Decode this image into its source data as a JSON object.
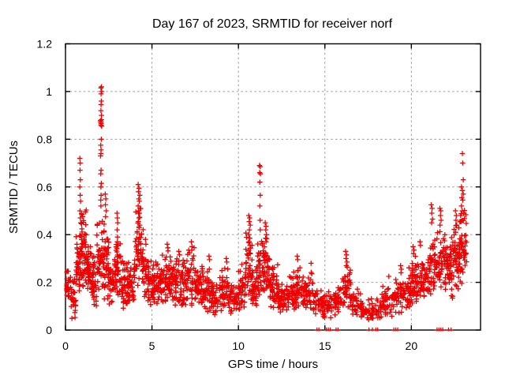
{
  "chart_data": {
    "type": "scatter",
    "title": "Day 167 of 2023, SRMTID for receiver norf",
    "xlabel": "GPS time / hours",
    "ylabel": "SRMTID / TECUs",
    "xlim": [
      0,
      24
    ],
    "ylim": [
      0,
      1.2
    ],
    "xtick_values": [
      0,
      5,
      10,
      15,
      20
    ],
    "xtick_labels": [
      "0",
      "5",
      "10",
      "15",
      "20"
    ],
    "ytick_values": [
      0,
      0.2,
      0.4,
      0.6,
      0.8,
      1,
      1.2
    ],
    "ytick_labels": [
      "0",
      "0.2",
      "0.4",
      "0.6",
      "0.8",
      "1",
      "1.2"
    ],
    "grid": "dashed-major",
    "grid_color": "#9a9a9a",
    "legend": "none",
    "marker": {
      "shape": "plus",
      "color": "#ee0000",
      "size": 6.6
    },
    "frame_color": "#000000",
    "series": {
      "representation": "binned_envelope_plus_peaks",
      "seed": 167,
      "band_bins": [
        [
          0.0,
          0.3,
          0.12,
          0.27,
          30
        ],
        [
          0.3,
          0.6,
          0.03,
          0.23,
          28
        ],
        [
          0.6,
          0.9,
          0.14,
          0.44,
          42
        ],
        [
          0.9,
          1.2,
          0.15,
          0.55,
          48
        ],
        [
          1.2,
          1.5,
          0.12,
          0.42,
          40
        ],
        [
          1.5,
          1.8,
          0.08,
          0.34,
          38
        ],
        [
          1.8,
          2.2,
          0.12,
          0.5,
          44
        ],
        [
          2.2,
          2.5,
          0.1,
          0.48,
          42
        ],
        [
          2.5,
          2.9,
          0.08,
          0.35,
          42
        ],
        [
          2.9,
          3.2,
          0.11,
          0.44,
          38
        ],
        [
          3.2,
          3.6,
          0.08,
          0.32,
          42
        ],
        [
          3.6,
          4.0,
          0.1,
          0.3,
          40
        ],
        [
          4.0,
          4.5,
          0.14,
          0.55,
          55
        ],
        [
          4.5,
          4.9,
          0.1,
          0.38,
          40
        ],
        [
          4.9,
          5.3,
          0.08,
          0.3,
          40
        ],
        [
          5.3,
          5.7,
          0.09,
          0.33,
          40
        ],
        [
          5.7,
          6.1,
          0.1,
          0.35,
          42
        ],
        [
          6.1,
          6.5,
          0.09,
          0.33,
          42
        ],
        [
          6.5,
          7.0,
          0.08,
          0.31,
          44
        ],
        [
          7.0,
          7.5,
          0.09,
          0.36,
          44
        ],
        [
          7.5,
          7.9,
          0.08,
          0.3,
          38
        ],
        [
          7.9,
          8.4,
          0.06,
          0.3,
          42
        ],
        [
          8.4,
          8.9,
          0.05,
          0.22,
          38
        ],
        [
          8.9,
          9.4,
          0.07,
          0.29,
          42
        ],
        [
          9.4,
          9.9,
          0.06,
          0.22,
          38
        ],
        [
          9.9,
          10.4,
          0.07,
          0.27,
          42
        ],
        [
          10.4,
          10.8,
          0.1,
          0.44,
          42
        ],
        [
          10.8,
          11.1,
          0.08,
          0.3,
          32
        ],
        [
          11.1,
          11.45,
          0.12,
          0.44,
          38
        ],
        [
          11.45,
          11.8,
          0.12,
          0.42,
          42
        ],
        [
          11.8,
          12.3,
          0.08,
          0.3,
          44
        ],
        [
          12.3,
          12.8,
          0.06,
          0.22,
          42
        ],
        [
          12.8,
          13.3,
          0.07,
          0.26,
          42
        ],
        [
          13.3,
          13.8,
          0.08,
          0.3,
          44
        ],
        [
          13.8,
          14.3,
          0.07,
          0.27,
          40
        ],
        [
          14.3,
          14.9,
          0.05,
          0.2,
          38
        ],
        [
          14.9,
          15.5,
          0.04,
          0.17,
          34
        ],
        [
          15.5,
          16.0,
          0.05,
          0.2,
          34
        ],
        [
          16.0,
          16.5,
          0.08,
          0.29,
          40
        ],
        [
          16.5,
          17.1,
          0.05,
          0.2,
          36
        ],
        [
          17.1,
          17.7,
          0.03,
          0.14,
          34
        ],
        [
          17.7,
          18.3,
          0.04,
          0.15,
          34
        ],
        [
          18.3,
          18.9,
          0.05,
          0.2,
          36
        ],
        [
          18.9,
          19.5,
          0.06,
          0.24,
          40
        ],
        [
          19.5,
          20.0,
          0.08,
          0.28,
          40
        ],
        [
          20.0,
          20.5,
          0.1,
          0.33,
          44
        ],
        [
          20.5,
          21.0,
          0.1,
          0.34,
          44
        ],
        [
          21.0,
          21.5,
          0.12,
          0.42,
          44
        ],
        [
          21.5,
          22.0,
          0.14,
          0.44,
          46
        ],
        [
          22.0,
          22.4,
          0.12,
          0.42,
          44
        ],
        [
          22.4,
          22.8,
          0.15,
          0.47,
          46
        ],
        [
          22.8,
          23.2,
          0.18,
          0.55,
          48
        ]
      ],
      "peak_points": [
        [
          0.83,
          0.72
        ],
        [
          0.85,
          0.7
        ],
        [
          0.84,
          0.67
        ],
        [
          0.86,
          0.63
        ],
        [
          0.83,
          0.6
        ],
        [
          0.85,
          0.565
        ],
        [
          0.87,
          0.54
        ],
        [
          0.84,
          0.5
        ],
        [
          0.86,
          0.47
        ],
        [
          0.88,
          0.45
        ],
        [
          2.08,
          1.02
        ],
        [
          2.05,
          1.015
        ],
        [
          2.1,
          1.0
        ],
        [
          2.06,
          0.99
        ],
        [
          2.07,
          0.96
        ],
        [
          2.06,
          0.945
        ],
        [
          2.05,
          0.92
        ],
        [
          2.08,
          0.9
        ],
        [
          2.02,
          0.878
        ],
        [
          2.04,
          0.872
        ],
        [
          2.06,
          0.866
        ],
        [
          2.08,
          0.882
        ],
        [
          2.05,
          0.86
        ],
        [
          2.09,
          0.855
        ],
        [
          2.07,
          0.8
        ],
        [
          2.04,
          0.775
        ],
        [
          2.06,
          0.755
        ],
        [
          2.05,
          0.74
        ],
        [
          2.03,
          0.73
        ],
        [
          2.06,
          0.67
        ],
        [
          2.04,
          0.655
        ],
        [
          2.07,
          0.615
        ],
        [
          2.05,
          0.6
        ],
        [
          2.06,
          0.565
        ],
        [
          2.04,
          0.545
        ],
        [
          2.05,
          0.52
        ],
        [
          2.3,
          0.57
        ],
        [
          2.33,
          0.55
        ],
        [
          2.31,
          0.525
        ],
        [
          2.35,
          0.5
        ],
        [
          2.32,
          0.475
        ],
        [
          2.98,
          0.49
        ],
        [
          3.0,
          0.47
        ],
        [
          3.02,
          0.45
        ],
        [
          2.99,
          0.42
        ],
        [
          3.01,
          0.39
        ],
        [
          3.0,
          0.37
        ],
        [
          4.2,
          0.61
        ],
        [
          4.25,
          0.595
        ],
        [
          4.22,
          0.58
        ],
        [
          4.3,
          0.565
        ],
        [
          4.24,
          0.55
        ],
        [
          4.27,
          0.54
        ],
        [
          4.2,
          0.52
        ],
        [
          4.3,
          0.51
        ],
        [
          4.22,
          0.5
        ],
        [
          4.28,
          0.49
        ],
        [
          4.25,
          0.47
        ],
        [
          4.21,
          0.455
        ],
        [
          4.3,
          0.44
        ],
        [
          4.26,
          0.43
        ],
        [
          4.62,
          0.38
        ],
        [
          4.65,
          0.36
        ],
        [
          5.88,
          0.36
        ],
        [
          5.92,
          0.345
        ],
        [
          6.55,
          0.33
        ],
        [
          6.6,
          0.315
        ],
        [
          7.28,
          0.37
        ],
        [
          7.32,
          0.35
        ],
        [
          7.3,
          0.335
        ],
        [
          8.3,
          0.31
        ],
        [
          8.33,
          0.295
        ],
        [
          9.3,
          0.3
        ],
        [
          9.33,
          0.285
        ],
        [
          10.2,
          0.275
        ],
        [
          10.6,
          0.48
        ],
        [
          10.65,
          0.47
        ],
        [
          10.62,
          0.455
        ],
        [
          10.68,
          0.44
        ],
        [
          10.63,
          0.42
        ],
        [
          10.6,
          0.4
        ],
        [
          10.66,
          0.385
        ],
        [
          10.62,
          0.37
        ],
        [
          10.67,
          0.355
        ],
        [
          11.22,
          0.69
        ],
        [
          11.26,
          0.685
        ],
        [
          11.23,
          0.66
        ],
        [
          11.27,
          0.655
        ],
        [
          11.24,
          0.62
        ],
        [
          11.26,
          0.565
        ],
        [
          11.24,
          0.52
        ],
        [
          11.25,
          0.46
        ],
        [
          11.26,
          0.42
        ],
        [
          11.55,
          0.45
        ],
        [
          11.6,
          0.435
        ],
        [
          11.58,
          0.42
        ],
        [
          11.62,
          0.4
        ],
        [
          11.57,
          0.385
        ],
        [
          11.6,
          0.37
        ],
        [
          13.4,
          0.31
        ],
        [
          13.43,
          0.295
        ],
        [
          14.2,
          0.28
        ],
        [
          16.2,
          0.33
        ],
        [
          16.25,
          0.315
        ],
        [
          16.22,
          0.3
        ],
        [
          16.28,
          0.285
        ],
        [
          16.24,
          0.27
        ],
        [
          18.7,
          0.225
        ],
        [
          19.38,
          0.27
        ],
        [
          19.42,
          0.255
        ],
        [
          19.4,
          0.24
        ],
        [
          20.1,
          0.35
        ],
        [
          20.15,
          0.335
        ],
        [
          20.12,
          0.32
        ],
        [
          20.5,
          0.37
        ],
        [
          20.53,
          0.355
        ],
        [
          21.15,
          0.525
        ],
        [
          21.2,
          0.51
        ],
        [
          21.18,
          0.49
        ],
        [
          21.22,
          0.465
        ],
        [
          21.17,
          0.45
        ],
        [
          21.65,
          0.51
        ],
        [
          21.7,
          0.5
        ],
        [
          21.68,
          0.48
        ],
        [
          21.72,
          0.46
        ],
        [
          21.66,
          0.44
        ],
        [
          22.55,
          0.5
        ],
        [
          22.6,
          0.48
        ],
        [
          22.58,
          0.46
        ],
        [
          22.62,
          0.44
        ],
        [
          22.95,
          0.74
        ],
        [
          22.97,
          0.7
        ],
        [
          23.0,
          0.63
        ],
        [
          22.9,
          0.6
        ],
        [
          22.95,
          0.585
        ],
        [
          23.0,
          0.57
        ],
        [
          22.92,
          0.555
        ],
        [
          22.97,
          0.545
        ],
        [
          22.9,
          0.52
        ],
        [
          22.94,
          0.5
        ]
      ],
      "zero_value_points": [
        [
          14.6,
          2
        ],
        [
          15.2,
          3
        ],
        [
          15.7,
          2
        ],
        [
          17.55,
          1
        ],
        [
          17.75,
          1
        ],
        [
          18.0,
          2
        ],
        [
          19.1,
          3
        ],
        [
          21.65,
          4
        ],
        [
          22.15,
          1
        ],
        [
          22.3,
          1
        ]
      ]
    }
  }
}
